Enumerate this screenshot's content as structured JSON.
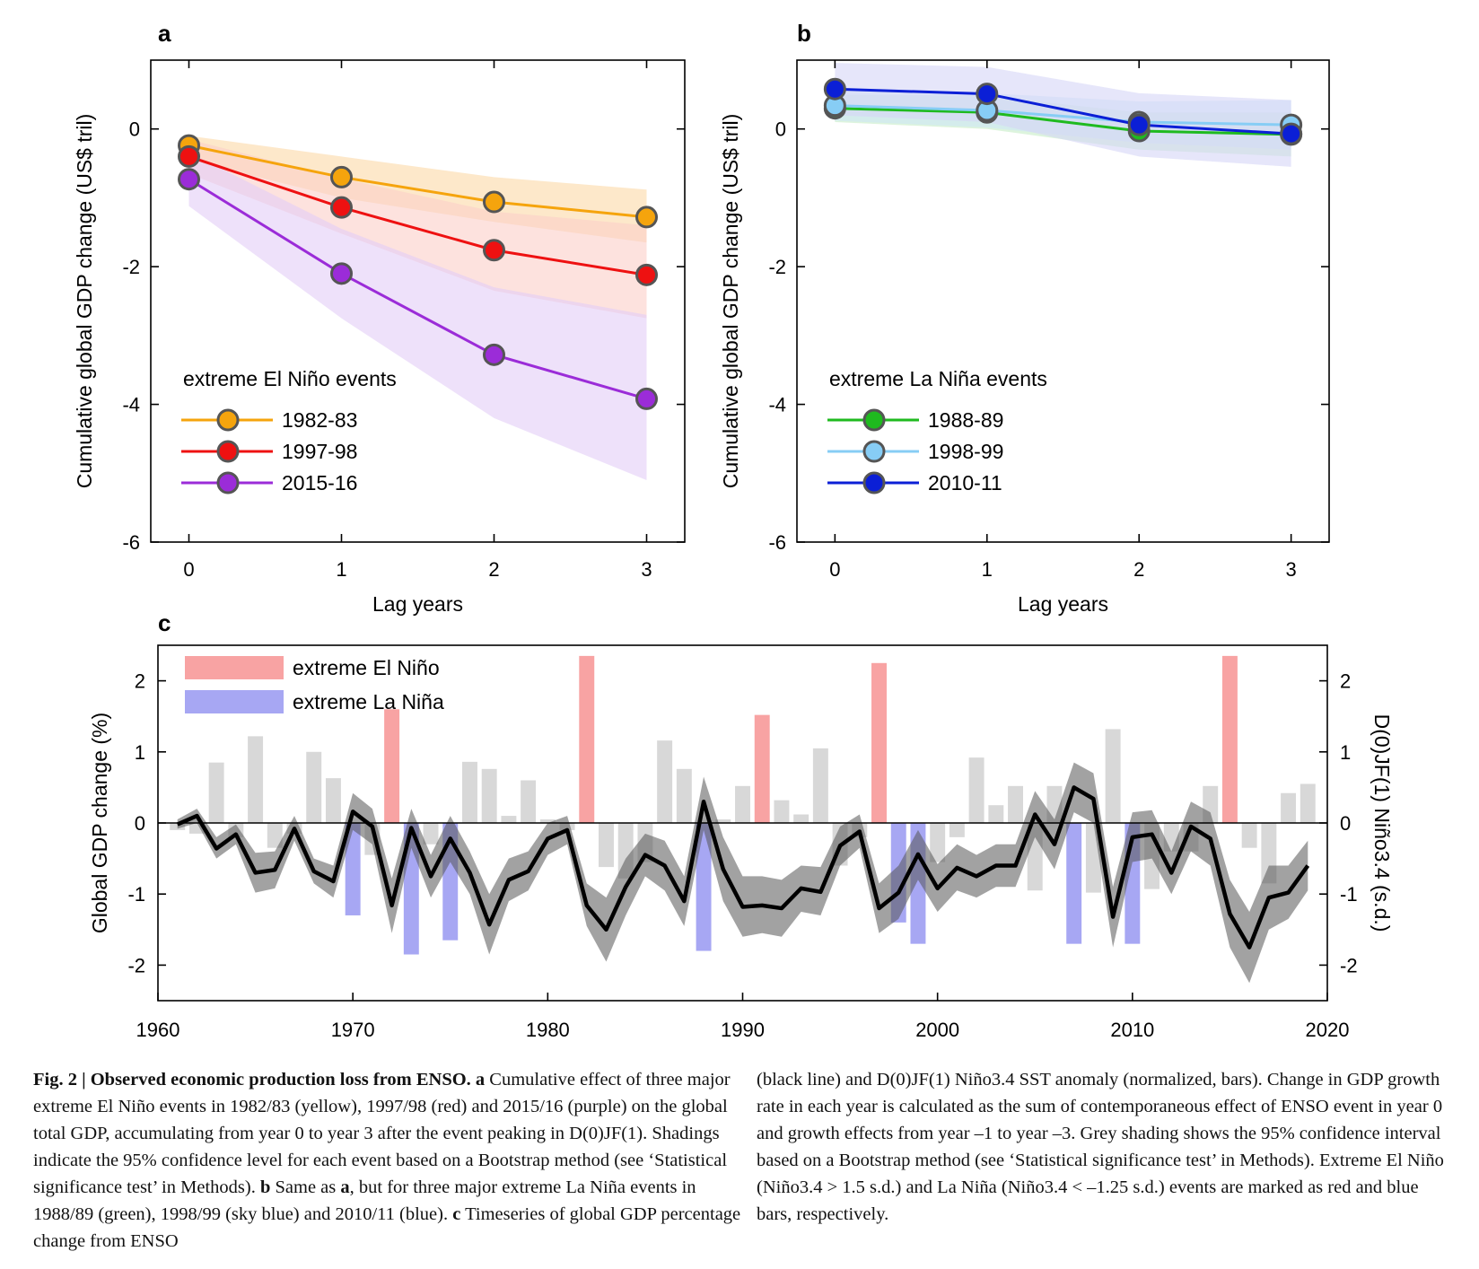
{
  "panels": {
    "a_label": "a",
    "b_label": "b",
    "c_label": "c",
    "ab_ylabel": "Cumulative global GDP change (US$ tril)",
    "ab_xlabel": "Lag years"
  },
  "chart_data": [
    {
      "id": "a",
      "type": "line",
      "x": [
        0,
        1,
        2,
        3
      ],
      "xticks": [
        "0",
        "1",
        "2",
        "3"
      ],
      "yticks": [
        "0",
        "-2",
        "-4",
        "-6"
      ],
      "ylim": [
        -6,
        1
      ],
      "xlim": [
        -0.25,
        3.25
      ],
      "ylabel": "Cumulative global GDP change (US$ tril)",
      "xlabel": "Lag years",
      "legend_title": "extreme El Niño events",
      "legend_position": "lower-left",
      "series": [
        {
          "name": "1982-83",
          "color": "#f5a40d",
          "band": "#fbd9a6",
          "values": [
            -0.24,
            -0.7,
            -1.06,
            -1.28
          ],
          "lower": [
            -0.45,
            -1.0,
            -1.35,
            -1.65
          ],
          "upper": [
            -0.1,
            -0.4,
            -0.7,
            -0.88
          ]
        },
        {
          "name": "1997-98",
          "color": "#ee1111",
          "band": "#fbcfc8",
          "values": [
            -0.4,
            -1.14,
            -1.76,
            -2.12
          ],
          "lower": [
            -0.65,
            -1.52,
            -2.35,
            -2.75
          ],
          "upper": [
            -0.15,
            -0.72,
            -1.2,
            -1.4
          ]
        },
        {
          "name": "2015-16",
          "color": "#9b2cd8",
          "band": "#e2cdf6",
          "values": [
            -0.73,
            -2.1,
            -3.28,
            -3.92
          ],
          "lower": [
            -1.12,
            -2.75,
            -4.2,
            -5.1
          ],
          "upper": [
            -0.34,
            -1.45,
            -2.3,
            -2.7
          ]
        }
      ]
    },
    {
      "id": "b",
      "type": "line",
      "x": [
        0,
        1,
        2,
        3
      ],
      "xticks": [
        "0",
        "1",
        "2",
        "3"
      ],
      "yticks": [
        "0",
        "-2",
        "-4",
        "-6"
      ],
      "ylim": [
        -6,
        1
      ],
      "xlim": [
        -0.25,
        3.25
      ],
      "ylabel": "Cumulative global GDP change (US$ tril)",
      "xlabel": "Lag years",
      "legend_title": "extreme La Niña events",
      "legend_position": "lower-left",
      "series": [
        {
          "name": "1988-89",
          "color": "#1fba1f",
          "band": "#c6ecc6",
          "values": [
            0.3,
            0.24,
            -0.03,
            -0.08
          ],
          "lower": [
            0.1,
            0.0,
            -0.3,
            -0.4
          ],
          "upper": [
            0.5,
            0.48,
            0.24,
            0.24
          ]
        },
        {
          "name": "1998-99",
          "color": "#87cdf5",
          "band": "#cfe6f7",
          "values": [
            0.34,
            0.27,
            0.1,
            0.06
          ],
          "lower": [
            0.12,
            0.02,
            -0.2,
            -0.3
          ],
          "upper": [
            0.56,
            0.52,
            0.4,
            0.42
          ]
        },
        {
          "name": "2010-11",
          "color": "#0b1fd6",
          "band": "#d6d6f7",
          "values": [
            0.58,
            0.51,
            0.06,
            -0.07
          ],
          "lower": [
            0.2,
            0.1,
            -0.4,
            -0.55
          ],
          "upper": [
            0.96,
            0.9,
            0.52,
            0.42
          ]
        }
      ]
    },
    {
      "id": "c",
      "type": "bar+line",
      "ylabel": "Global GDP change (%)",
      "y2label": "D(0)JF(1) Niño3.4 (s.d.)",
      "xlim": [
        1960,
        2020
      ],
      "ylim": [
        -2.5,
        2.5
      ],
      "xticks": [
        "1960",
        "1970",
        "1980",
        "1990",
        "2000",
        "2010",
        "2020"
      ],
      "yticks": [
        "2",
        "1",
        "0",
        "-1",
        "-2"
      ],
      "y2ticks": [
        "2",
        "1",
        "0",
        "-1",
        "-2"
      ],
      "legend": [
        {
          "label": "extreme El Niño",
          "color": "#f8a3a3"
        },
        {
          "label": "extreme La Niña",
          "color": "#a7a7f3"
        }
      ],
      "legend_position": "top-left",
      "bar_colors": {
        "neutral": "#d8d8d8",
        "elnino": "#f8a3a3",
        "lanina": "#a7a7f3"
      },
      "years": [
        1961,
        1962,
        1963,
        1964,
        1965,
        1966,
        1967,
        1968,
        1969,
        1970,
        1971,
        1972,
        1973,
        1974,
        1975,
        1976,
        1977,
        1978,
        1979,
        1980,
        1981,
        1982,
        1983,
        1984,
        1985,
        1986,
        1987,
        1988,
        1989,
        1990,
        1991,
        1992,
        1993,
        1994,
        1995,
        1996,
        1997,
        1998,
        1999,
        2000,
        2001,
        2002,
        2003,
        2004,
        2005,
        2006,
        2007,
        2008,
        2009,
        2010,
        2011,
        2012,
        2013,
        2014,
        2015,
        2016,
        2017,
        2018,
        2019
      ],
      "nino34": [
        -0.1,
        -0.15,
        0.85,
        -0.2,
        1.22,
        -0.35,
        -0.15,
        1.0,
        0.63,
        -1.3,
        -0.45,
        1.6,
        -1.85,
        -0.3,
        -1.65,
        0.86,
        0.76,
        0.1,
        0.6,
        0.05,
        -0.1,
        2.35,
        -0.62,
        -0.78,
        -0.55,
        1.16,
        0.76,
        -1.8,
        0.05,
        0.52,
        1.52,
        0.32,
        0.12,
        1.05,
        -0.6,
        -0.2,
        2.25,
        -1.4,
        -1.7,
        -0.55,
        -0.2,
        0.92,
        0.25,
        0.52,
        -0.95,
        0.52,
        -1.7,
        -0.98,
        1.32,
        -1.7,
        -0.93,
        -0.4,
        -0.4,
        0.52,
        2.35,
        -0.35,
        -0.85,
        0.42,
        0.55
      ],
      "bar_type": [
        "n",
        "n",
        "n",
        "n",
        "n",
        "n",
        "n",
        "n",
        "n",
        "l",
        "n",
        "e",
        "l",
        "n",
        "l",
        "n",
        "n",
        "n",
        "n",
        "n",
        "n",
        "e",
        "n",
        "n",
        "n",
        "n",
        "n",
        "l",
        "n",
        "n",
        "e",
        "n",
        "n",
        "n",
        "n",
        "n",
        "e",
        "l",
        "l",
        "n",
        "n",
        "n",
        "n",
        "n",
        "n",
        "n",
        "l",
        "n",
        "n",
        "l",
        "n",
        "n",
        "n",
        "n",
        "e",
        "n",
        "n",
        "n",
        "n"
      ],
      "gdp_change": [
        -0.02,
        0.1,
        -0.36,
        -0.16,
        -0.7,
        -0.66,
        -0.08,
        -0.68,
        -0.82,
        0.16,
        -0.05,
        -1.16,
        -0.07,
        -0.75,
        -0.22,
        -0.7,
        -1.43,
        -0.8,
        -0.68,
        -0.22,
        -0.1,
        -1.16,
        -1.5,
        -0.9,
        -0.45,
        -0.6,
        -1.1,
        0.3,
        -0.65,
        -1.18,
        -1.16,
        -1.2,
        -0.92,
        -0.97,
        -0.32,
        -0.12,
        -1.2,
        -0.98,
        -0.44,
        -0.92,
        -0.63,
        -0.75,
        -0.6,
        -0.6,
        0.12,
        -0.3,
        0.5,
        0.34,
        -1.32,
        -0.2,
        -0.16,
        -0.7,
        -0.05,
        -0.22,
        -1.28,
        -1.75,
        -1.05,
        -0.98,
        -0.6
      ],
      "gdp_lower": [
        -0.08,
        0.0,
        -0.5,
        -0.3,
        -0.98,
        -0.92,
        -0.25,
        -0.85,
        -1.05,
        -0.1,
        -0.3,
        -1.55,
        -0.35,
        -1.05,
        -0.55,
        -1.0,
        -1.85,
        -1.1,
        -0.95,
        -0.45,
        -0.3,
        -1.45,
        -1.95,
        -1.3,
        -0.75,
        -0.95,
        -1.45,
        -0.1,
        -1.1,
        -1.6,
        -1.55,
        -1.6,
        -1.25,
        -1.3,
        -0.6,
        -0.35,
        -1.55,
        -1.35,
        -0.8,
        -1.25,
        -0.95,
        -1.05,
        -0.9,
        -0.9,
        -0.2,
        -0.65,
        0.15,
        0.0,
        -1.75,
        -0.55,
        -0.5,
        -1.0,
        -0.4,
        -0.6,
        -1.75,
        -2.25,
        -1.5,
        -1.35,
        -0.95
      ],
      "gdp_upper": [
        0.05,
        0.2,
        -0.2,
        -0.02,
        -0.42,
        -0.4,
        0.1,
        -0.5,
        -0.6,
        0.42,
        0.2,
        -0.78,
        0.2,
        -0.45,
        0.1,
        -0.4,
        -1.0,
        -0.5,
        -0.4,
        0.0,
        0.1,
        -0.85,
        -1.05,
        -0.5,
        -0.15,
        -0.25,
        -0.75,
        0.65,
        -0.2,
        -0.75,
        -0.75,
        -0.8,
        -0.6,
        -0.62,
        -0.05,
        0.12,
        -0.85,
        -0.6,
        -0.1,
        -0.58,
        -0.3,
        -0.45,
        -0.3,
        -0.3,
        0.45,
        0.05,
        0.85,
        0.7,
        -0.9,
        0.15,
        0.18,
        -0.4,
        0.3,
        0.15,
        -0.8,
        -1.25,
        -0.6,
        -0.6,
        -0.25
      ]
    }
  ],
  "caption": {
    "fig_label": "Fig. 2 | Observed economic production loss from ENSO.",
    "col1_rest": " Cumulative effect of three major extreme El Niño events in 1982/83 (yellow), 1997/98 (red) and 2015/16 (purple) on the global total GDP, accumulating from year 0 to year 3 after the event peaking in D(0)JF(1). Shadings indicate the 95% confidence level for each event based on a Bootstrap method (see ‘Statistical significance test’ in Methods).",
    "b_text": " Same as ",
    "b_text2": ", but for three major extreme La Niña events in 1988/89 (green), 1998/99 (sky blue) and 2010/11 (blue).",
    "c_text": " Timeseries of global GDP percentage change from ENSO",
    "col2": "(black line) and D(0)JF(1) Niño3.4 SST anomaly (normalized, bars). Change in GDP growth rate in each year is calculated as the sum of contemporaneous effect of ENSO event in year 0 and growth effects from year –1 to year –3. Grey shading shows the 95% confidence interval based on a Bootstrap method (see ‘Statistical significance test’ in Methods). Extreme El Niño (Niño3.4 > 1.5 s.d.) and La Niña (Niño3.4 < –1.25 s.d.) events are marked as red and blue bars, respectively."
  }
}
